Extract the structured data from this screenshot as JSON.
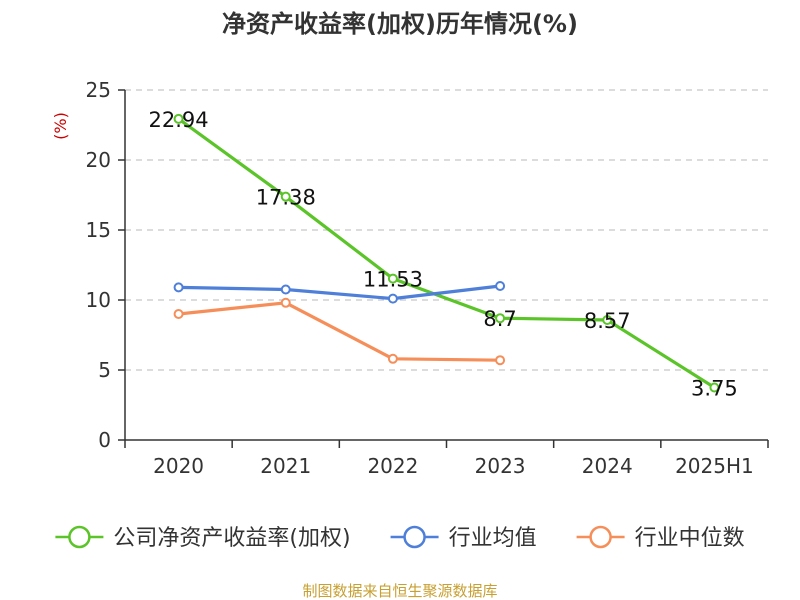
{
  "chart_data": {
    "type": "line",
    "title": "净资产收益率(加权)历年情况(%)",
    "ylabel": "(%)",
    "categories": [
      "2020",
      "2021",
      "2022",
      "2023",
      "2024",
      "2025H1"
    ],
    "ylim": [
      0,
      25
    ],
    "yticks": [
      0,
      5,
      10,
      15,
      20,
      25
    ],
    "grid": true,
    "legend_position": "bottom",
    "series": [
      {
        "name": "公司净资产收益率(加权)",
        "color": "#5bc428",
        "values": [
          22.94,
          17.38,
          11.53,
          8.7,
          8.57,
          3.75
        ],
        "labels": [
          "22.94",
          "17.38",
          "11.53",
          "8.7",
          "8.57",
          "3.75"
        ]
      },
      {
        "name": "行业均值",
        "color": "#4e7fd9",
        "values": [
          10.9,
          10.75,
          10.1,
          11.0,
          null,
          null
        ]
      },
      {
        "name": "行业中位数",
        "color": "#f68e59",
        "values": [
          9.0,
          9.8,
          5.8,
          5.7,
          null,
          null
        ]
      }
    ],
    "ylabel_color": "#cc0000",
    "source": "制图数据来自恒生聚源数据库",
    "source_color": "#c8a032"
  }
}
